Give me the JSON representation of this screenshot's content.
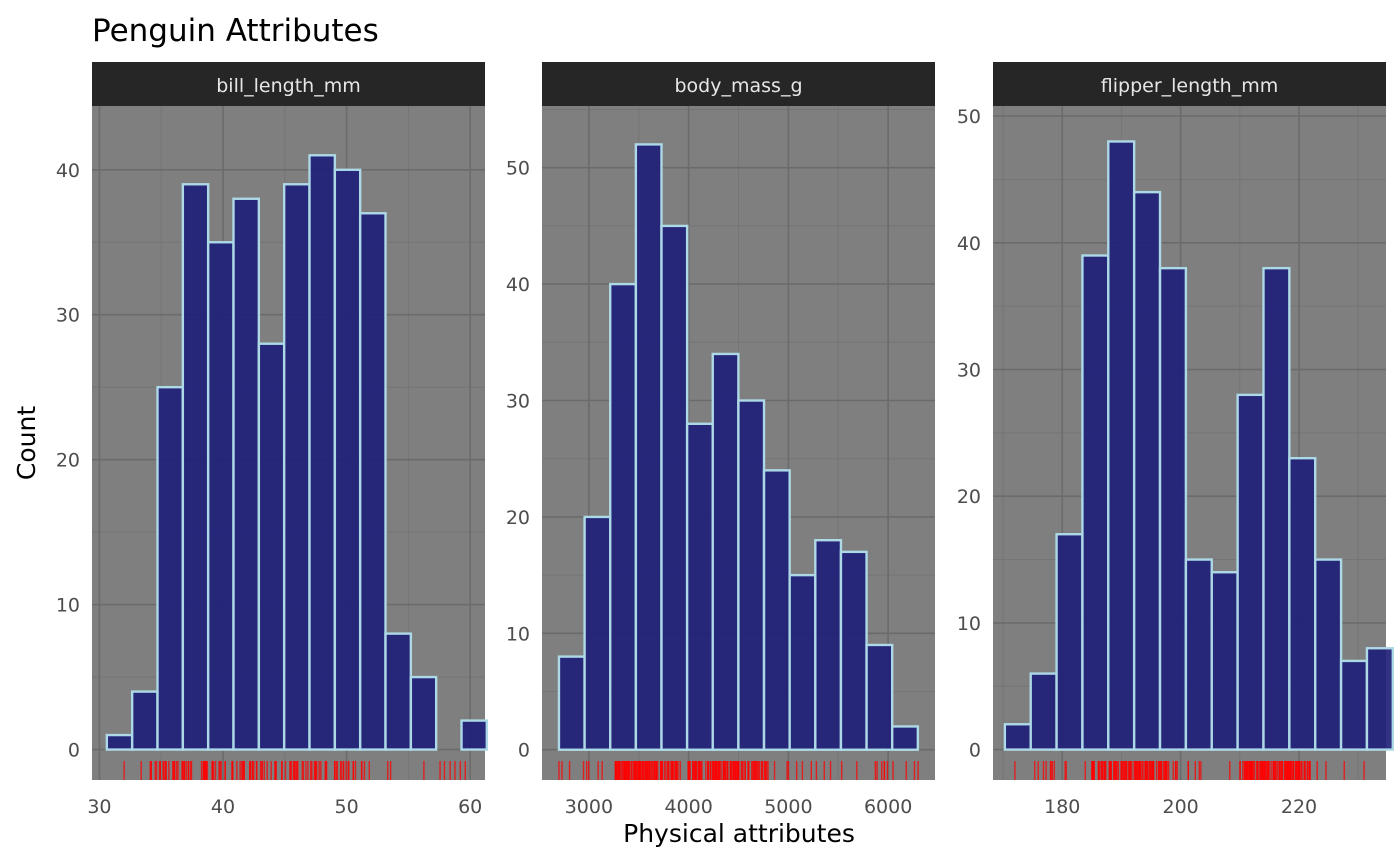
{
  "title": "Penguin Attributes",
  "xlabel": "Physical attributes",
  "ylabel": "Count",
  "colors": {
    "panel_bg": "#7f7f7f",
    "grid_major": "#6b6b6b",
    "grid_minor": "#757575",
    "strip_bg": "#262626",
    "strip_text": "#e6e6e6",
    "bar_fill": "#1f1f7a",
    "bar_stroke": "#add8e6",
    "rug": "#ff0000"
  },
  "chart_data": [
    {
      "type": "bar",
      "facet": "bill_length_mm",
      "xlim": [
        29.4,
        61.2
      ],
      "ylim": [
        -2.1,
        44.4
      ],
      "xticks": [
        30,
        40,
        50,
        60
      ],
      "yticks": [
        0,
        10,
        20,
        30,
        40
      ],
      "bin_start": 30.6,
      "bin_width": 2.05,
      "values": [
        1,
        4,
        25,
        39,
        35,
        38,
        28,
        39,
        41,
        40,
        37,
        8,
        5,
        0,
        2
      ],
      "rug_range": [
        32,
        59.6
      ],
      "rug_clusters": [
        [
          34.5,
          52
        ]
      ]
    },
    {
      "type": "bar",
      "facet": "body_mass_g",
      "xlim": [
        2530,
        6470
      ],
      "ylim": [
        -2.6,
        55.3
      ],
      "xticks": [
        3000,
        4000,
        5000,
        6000
      ],
      "yticks": [
        0,
        10,
        20,
        30,
        40,
        50
      ],
      "bin_start": 2700,
      "bin_width": 257,
      "values": [
        8,
        20,
        40,
        52,
        45,
        28,
        34,
        30,
        24,
        15,
        18,
        17,
        9,
        2
      ],
      "rug_range": [
        2700,
        6300
      ],
      "rug_clusters": [
        [
          3250,
          3900
        ],
        [
          4000,
          4800
        ]
      ]
    },
    {
      "type": "bar",
      "facet": "flipper_length_mm",
      "xlim": [
        168.3,
        234.7
      ],
      "ylim": [
        -2.4,
        50.8
      ],
      "xticks": [
        180,
        200,
        220
      ],
      "yticks": [
        0,
        10,
        20,
        30,
        40,
        50
      ],
      "bin_start": 170.3,
      "bin_width": 4.37,
      "values": [
        2,
        6,
        17,
        39,
        48,
        44,
        38,
        15,
        14,
        28,
        38,
        23,
        15,
        7,
        8
      ],
      "rug_range": [
        172,
        231
      ],
      "rug_clusters": [
        [
          185,
          198
        ],
        [
          210,
          222
        ]
      ]
    }
  ]
}
